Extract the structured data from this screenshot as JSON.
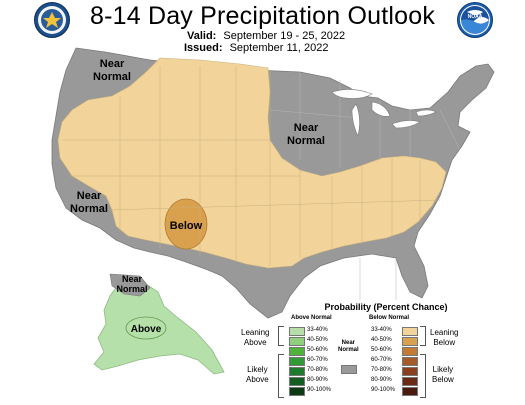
{
  "header": {
    "title": "8-14 Day Precipitation Outlook",
    "valid_label": "Valid:",
    "valid_dates": "September 19 - 25, 2022",
    "issued_label": "Issued:",
    "issued_date": "September 11, 2022",
    "logo_left_icon": "doc-seal-icon",
    "logo_right_icon": "noaa-logo-icon",
    "logo_right_text": "NOAA"
  },
  "map": {
    "region_labels": {
      "nw": [
        "Near",
        "Normal"
      ],
      "central": [
        "Near",
        "Normal"
      ],
      "sw": [
        "Near",
        "Normal"
      ],
      "alaska": [
        "Near",
        "Normal"
      ],
      "below": "Below",
      "above": "Above"
    },
    "colors": {
      "near_normal": "#999999",
      "below_light": "#f2d49a",
      "below_medium": "#d9a04d",
      "above_light": "#b6e0a9",
      "state_border": "#c8b07c",
      "water": "#ffffff"
    }
  },
  "legend": {
    "title": "Probability (Percent Chance)",
    "above_header": "Above Normal",
    "below_header": "Below Normal",
    "near_normal_label": [
      "Near",
      "Normal"
    ],
    "leaning_above": [
      "Leaning",
      "Above"
    ],
    "likely_above": [
      "Likely",
      "Above"
    ],
    "leaning_below": [
      "Leaning",
      "Below"
    ],
    "likely_below": [
      "Likely",
      "Below"
    ],
    "above_bins": [
      {
        "label": "33-40%",
        "color": "#b5dea9"
      },
      {
        "label": "40-50%",
        "color": "#8fcf7d"
      },
      {
        "label": "50-60%",
        "color": "#4fb33b"
      },
      {
        "label": "60-70%",
        "color": "#2f9a36"
      },
      {
        "label": "70-80%",
        "color": "#1e7a2c"
      },
      {
        "label": "80-90%",
        "color": "#145d22"
      },
      {
        "label": "90-100%",
        "color": "#0b3a14"
      }
    ],
    "below_bins": [
      {
        "label": "33-40%",
        "color": "#f2d49a"
      },
      {
        "label": "40-50%",
        "color": "#d9a04d"
      },
      {
        "label": "50-60%",
        "color": "#c27a35"
      },
      {
        "label": "60-70%",
        "color": "#a65a27"
      },
      {
        "label": "70-80%",
        "color": "#8a3f1d"
      },
      {
        "label": "80-90%",
        "color": "#6a2a14"
      },
      {
        "label": "90-100%",
        "color": "#4a1a0c"
      }
    ],
    "near_normal_color": "#999999"
  }
}
